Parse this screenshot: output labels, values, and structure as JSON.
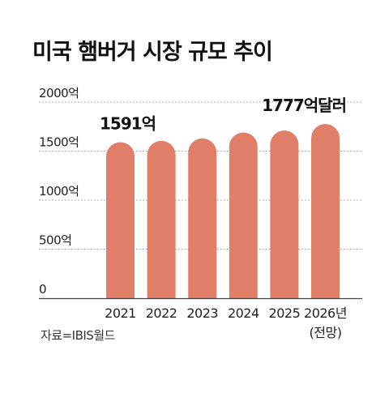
{
  "title": "미국 햄버거 시장 규모 추이",
  "source": "자료=IBIS월드",
  "colors": {
    "bar": "#E07E67",
    "grid": "#999999",
    "axis": "#444444",
    "text": "#222222"
  },
  "chart_data": {
    "type": "bar",
    "title": "미국 햄버거 시장 규모 추이",
    "categories": [
      "2021",
      "2022",
      "2023",
      "2024",
      "2025",
      "2026년"
    ],
    "category_sublabels": [
      "",
      "",
      "",
      "",
      "",
      "(전망)"
    ],
    "values": [
      1591,
      1605,
      1630,
      1690,
      1710,
      1777
    ],
    "ylim": [
      0,
      2000
    ],
    "yticks": [
      0,
      500,
      1000,
      1500,
      2000
    ],
    "ytick_labels": [
      "0",
      "500억",
      "1000억",
      "1500억",
      "2000억"
    ],
    "data_labels": [
      {
        "index": 0,
        "text": "1591억"
      },
      {
        "index": 5,
        "text": "1777억달러"
      }
    ],
    "grid": true
  }
}
